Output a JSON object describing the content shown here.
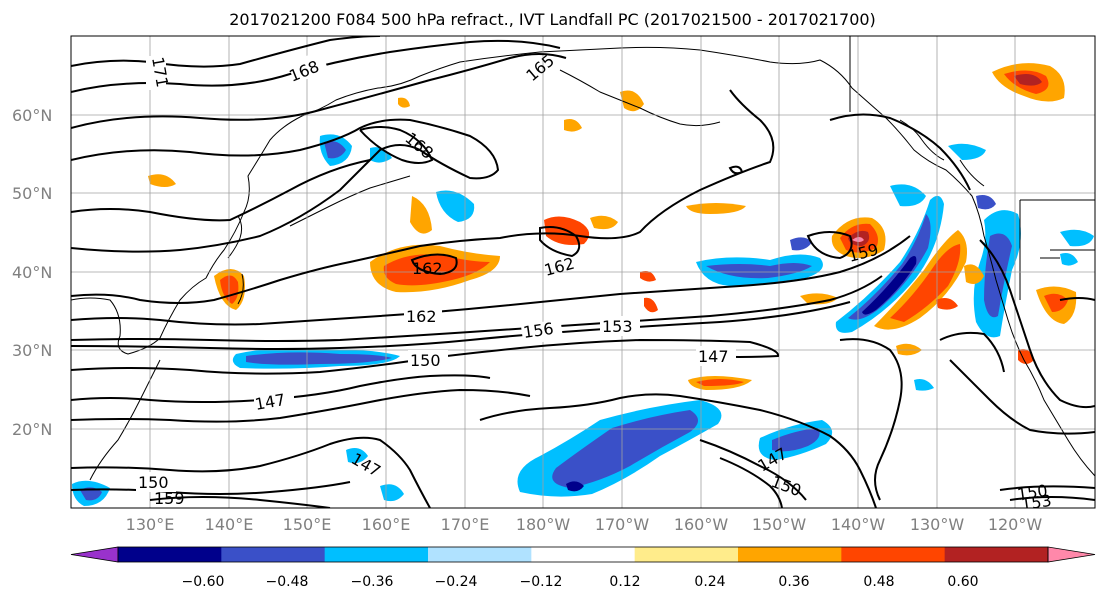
{
  "title": "2017021200 F084 500 hPa refract., IVT Landfall PC (2017021500 - 2017021700)",
  "lat_labels": [
    "60°N",
    "50°N",
    "40°N",
    "30°N",
    "20°N"
  ],
  "lon_labels": [
    "130°E",
    "140°E",
    "150°E",
    "160°E",
    "170°E",
    "180°W",
    "170°W",
    "160°W",
    "150°W",
    "140°W",
    "130°W",
    "120°W"
  ],
  "contour_labels": [
    "171",
    "168",
    "165",
    "168",
    "162",
    "162",
    "159",
    "162",
    "156",
    "153",
    "150",
    "147",
    "147",
    "147",
    "147",
    "150",
    "150",
    "159",
    "150",
    "153"
  ],
  "colorbar": {
    "ticks": [
      "−0.60",
      "−0.48",
      "−0.36",
      "−0.24",
      "−0.12",
      "0.12",
      "0.24",
      "0.36",
      "0.48",
      "0.60"
    ],
    "colors": [
      "#9932cc",
      "#00008b",
      "#3a50c8",
      "#00bfff",
      "#b0e2ff",
      "#ffffff",
      "#ffec8b",
      "#ffa500",
      "#ff4500",
      "#b22222",
      "#ff88aa"
    ]
  },
  "colors": {
    "purple": "#9932cc",
    "navy": "#00008b",
    "blue": "#3a50c8",
    "cyan": "#00bfff",
    "lightblue": "#b0e2ff",
    "yellow": "#ffec8b",
    "orange": "#ffa500",
    "redorange": "#ff4500",
    "darkred": "#b22222",
    "pink": "#ff88aa"
  }
}
